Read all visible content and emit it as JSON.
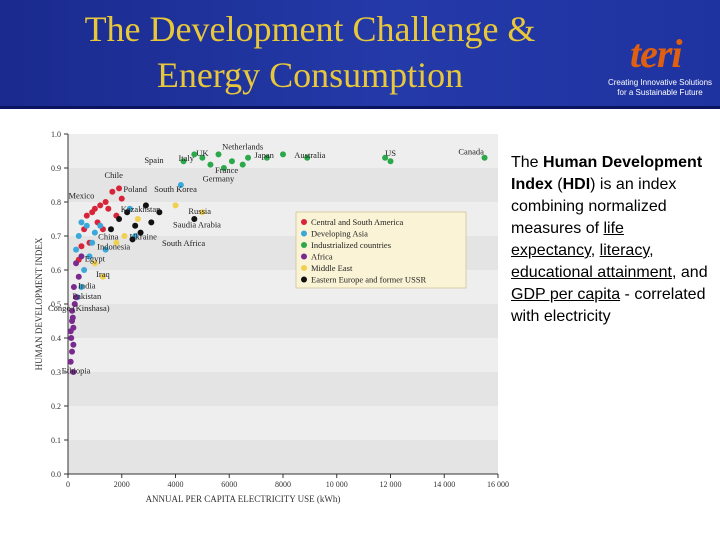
{
  "slide": {
    "title_line1": "The Development Challenge &",
    "title_line2": "Energy Consumption"
  },
  "logo": {
    "word": "teri",
    "tagline_line1": "Creating Innovative Solutions",
    "tagline_line2": "for a Sustainable Future"
  },
  "colors": {
    "header": "#1f33a0",
    "title": "#e8c83a",
    "central_south_america": "#d8243a",
    "developing_asia": "#3aa8d8",
    "industrialized": "#2aa84a",
    "africa": "#7a2a8e",
    "middle_east": "#f0d050",
    "eastern_europe_ussr": "#111111"
  },
  "description": {
    "t1": "The ",
    "b1": "Human Development Index",
    "t2": " (",
    "b2": "HDI",
    "t3": ") is an index combining normalized measures of ",
    "l1": "life expectancy",
    "t4": ", ",
    "l2": "literacy",
    "t5": ", ",
    "l3": "educational attainment",
    "t6": ", and ",
    "l4": "GDP per capita",
    "t7": " - correlated with electricity"
  },
  "chart_data": {
    "type": "scatter",
    "title": "",
    "xlabel": "ANNUAL PER CAPITA ELECTRICITY USE (kWh)",
    "ylabel": "HUMAN DEVELOPMENT INDEX",
    "xlim": [
      0,
      16000
    ],
    "ylim": [
      0.0,
      1.0
    ],
    "x_ticks": [
      "0",
      "2000",
      "4000",
      "6000",
      "8000",
      "10 000",
      "12 000",
      "14 000",
      "16 000"
    ],
    "x_tick_values": [
      0,
      2000,
      4000,
      6000,
      8000,
      10000,
      12000,
      14000,
      16000
    ],
    "y_ticks": [
      "0.0",
      "0.1",
      "0.2",
      "0.3",
      "0.4",
      "0.5",
      "0.6",
      "0.7",
      "0.8",
      "0.9",
      "1.0"
    ],
    "y_tick_values": [
      0.0,
      0.1,
      0.2,
      0.3,
      0.4,
      0.5,
      0.6,
      0.7,
      0.8,
      0.9,
      1.0
    ],
    "legend_entries": [
      {
        "label": "Central and South America",
        "color": "#d8243a"
      },
      {
        "label": "Developing Asia",
        "color": "#3aa8d8"
      },
      {
        "label": "Industrialized countries",
        "color": "#2aa84a"
      },
      {
        "label": "Africa",
        "color": "#7a2a8e"
      },
      {
        "label": "Middle East",
        "color": "#f0d050"
      },
      {
        "label": "Eastern Europe and former USSR",
        "color": "#111111"
      }
    ],
    "legend_position": "center-right",
    "series": [
      {
        "name": "Central and South America",
        "color": "#d8243a",
        "points": [
          [
            1900,
            0.84
          ],
          [
            1650,
            0.83
          ],
          [
            1400,
            0.8
          ],
          [
            1200,
            0.79
          ],
          [
            900,
            0.77
          ],
          [
            1000,
            0.78
          ],
          [
            700,
            0.76
          ],
          [
            1500,
            0.78
          ],
          [
            2000,
            0.81
          ],
          [
            1800,
            0.76
          ],
          [
            1100,
            0.74
          ],
          [
            600,
            0.72
          ],
          [
            1300,
            0.72
          ],
          [
            800,
            0.68
          ],
          [
            500,
            0.67
          ],
          [
            400,
            0.63
          ]
        ]
      },
      {
        "name": "Developing Asia",
        "color": "#3aa8d8",
        "points": [
          [
            4200,
            0.85
          ],
          [
            2300,
            0.78
          ],
          [
            1200,
            0.73
          ],
          [
            1000,
            0.71
          ],
          [
            700,
            0.73
          ],
          [
            500,
            0.74
          ],
          [
            400,
            0.7
          ],
          [
            900,
            0.68
          ],
          [
            300,
            0.66
          ],
          [
            600,
            0.6
          ],
          [
            500,
            0.55
          ],
          [
            350,
            0.52
          ],
          [
            800,
            0.64
          ],
          [
            1400,
            0.66
          ],
          [
            2500,
            0.7
          ]
        ]
      },
      {
        "name": "Industrialized countries",
        "color": "#2aa84a",
        "points": [
          [
            4300,
            0.92
          ],
          [
            5000,
            0.93
          ],
          [
            5600,
            0.94
          ],
          [
            6100,
            0.92
          ],
          [
            6700,
            0.93
          ],
          [
            7400,
            0.93
          ],
          [
            8000,
            0.94
          ],
          [
            8900,
            0.93
          ],
          [
            6500,
            0.91
          ],
          [
            5800,
            0.9
          ],
          [
            5300,
            0.91
          ],
          [
            4700,
            0.94
          ],
          [
            12000,
            0.92
          ],
          [
            15500,
            0.93
          ],
          [
            11800,
            0.93
          ]
        ]
      },
      {
        "name": "Africa",
        "color": "#7a2a8e",
        "points": [
          [
            200,
            0.3
          ],
          [
            100,
            0.33
          ],
          [
            150,
            0.36
          ],
          [
            120,
            0.4
          ],
          [
            200,
            0.43
          ],
          [
            180,
            0.46
          ],
          [
            250,
            0.5
          ],
          [
            150,
            0.48
          ],
          [
            300,
            0.52
          ],
          [
            100,
            0.42
          ],
          [
            220,
            0.55
          ],
          [
            400,
            0.58
          ],
          [
            300,
            0.62
          ],
          [
            500,
            0.64
          ],
          [
            200,
            0.38
          ],
          [
            150,
            0.45
          ]
        ]
      },
      {
        "name": "Middle East",
        "color": "#f0d050",
        "points": [
          [
            1300,
            0.58
          ],
          [
            1800,
            0.68
          ],
          [
            2100,
            0.7
          ],
          [
            4000,
            0.79
          ],
          [
            5000,
            0.77
          ],
          [
            2600,
            0.75
          ],
          [
            1000,
            0.62
          ]
        ]
      },
      {
        "name": "Eastern Europe and former USSR",
        "color": "#111111",
        "points": [
          [
            2900,
            0.79
          ],
          [
            4700,
            0.75
          ],
          [
            2500,
            0.73
          ],
          [
            2200,
            0.77
          ],
          [
            1900,
            0.75
          ],
          [
            3100,
            0.74
          ],
          [
            2700,
            0.71
          ],
          [
            3400,
            0.77
          ],
          [
            1600,
            0.72
          ],
          [
            2400,
            0.69
          ]
        ]
      }
    ],
    "annotations": [
      {
        "label": "Netherlands",
        "x": 6500,
        "y": 0.955
      },
      {
        "label": "UK",
        "x": 5000,
        "y": 0.935
      },
      {
        "label": "Spain",
        "x": 3200,
        "y": 0.915
      },
      {
        "label": "Italy",
        "x": 4400,
        "y": 0.92
      },
      {
        "label": "Japan",
        "x": 7300,
        "y": 0.93
      },
      {
        "label": "Australia",
        "x": 9000,
        "y": 0.93
      },
      {
        "label": "US",
        "x": 12000,
        "y": 0.935
      },
      {
        "label": "Canada",
        "x": 15000,
        "y": 0.94
      },
      {
        "label": "Chile",
        "x": 1700,
        "y": 0.87
      },
      {
        "label": "France",
        "x": 5900,
        "y": 0.885
      },
      {
        "label": "Germany",
        "x": 5600,
        "y": 0.86
      },
      {
        "label": "Poland",
        "x": 2500,
        "y": 0.83
      },
      {
        "label": "South Korea",
        "x": 4000,
        "y": 0.83
      },
      {
        "label": "Mexico",
        "x": 500,
        "y": 0.81
      },
      {
        "label": "Kazakhstan",
        "x": 2700,
        "y": 0.77
      },
      {
        "label": "Russia",
        "x": 4900,
        "y": 0.765
      },
      {
        "label": "Saudia Arabia",
        "x": 4800,
        "y": 0.725
      },
      {
        "label": "China",
        "x": 1500,
        "y": 0.69
      },
      {
        "label": "Ukraine",
        "x": 2800,
        "y": 0.69
      },
      {
        "label": "Indonesia",
        "x": 1700,
        "y": 0.66
      },
      {
        "label": "South Africa",
        "x": 4300,
        "y": 0.67
      },
      {
        "label": "Egypt",
        "x": 1000,
        "y": 0.625
      },
      {
        "label": "Iraq",
        "x": 1300,
        "y": 0.58
      },
      {
        "label": "India",
        "x": 700,
        "y": 0.545
      },
      {
        "label": "Pakistan",
        "x": 700,
        "y": 0.515
      },
      {
        "label": "Congo (Kinshasa)",
        "x": 400,
        "y": 0.48
      },
      {
        "label": "Ethiopia",
        "x": 300,
        "y": 0.295
      }
    ]
  }
}
